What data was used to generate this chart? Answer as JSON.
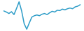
{
  "x": [
    0,
    1,
    2,
    3,
    4,
    5,
    6,
    7,
    8,
    9,
    10,
    11,
    12,
    13,
    14,
    15,
    16,
    17,
    18,
    19,
    20,
    21,
    22,
    23,
    24,
    25,
    26,
    27,
    28,
    29,
    30
  ],
  "y": [
    55,
    52,
    48,
    53,
    45,
    62,
    80,
    55,
    20,
    5,
    22,
    38,
    42,
    44,
    42,
    46,
    48,
    45,
    50,
    54,
    52,
    57,
    56,
    60,
    58,
    61,
    63,
    61,
    66,
    68,
    72
  ],
  "line_color": "#2e9dc8",
  "linewidth": 1.1,
  "background_color": "#ffffff",
  "ylim": [
    0,
    85
  ]
}
